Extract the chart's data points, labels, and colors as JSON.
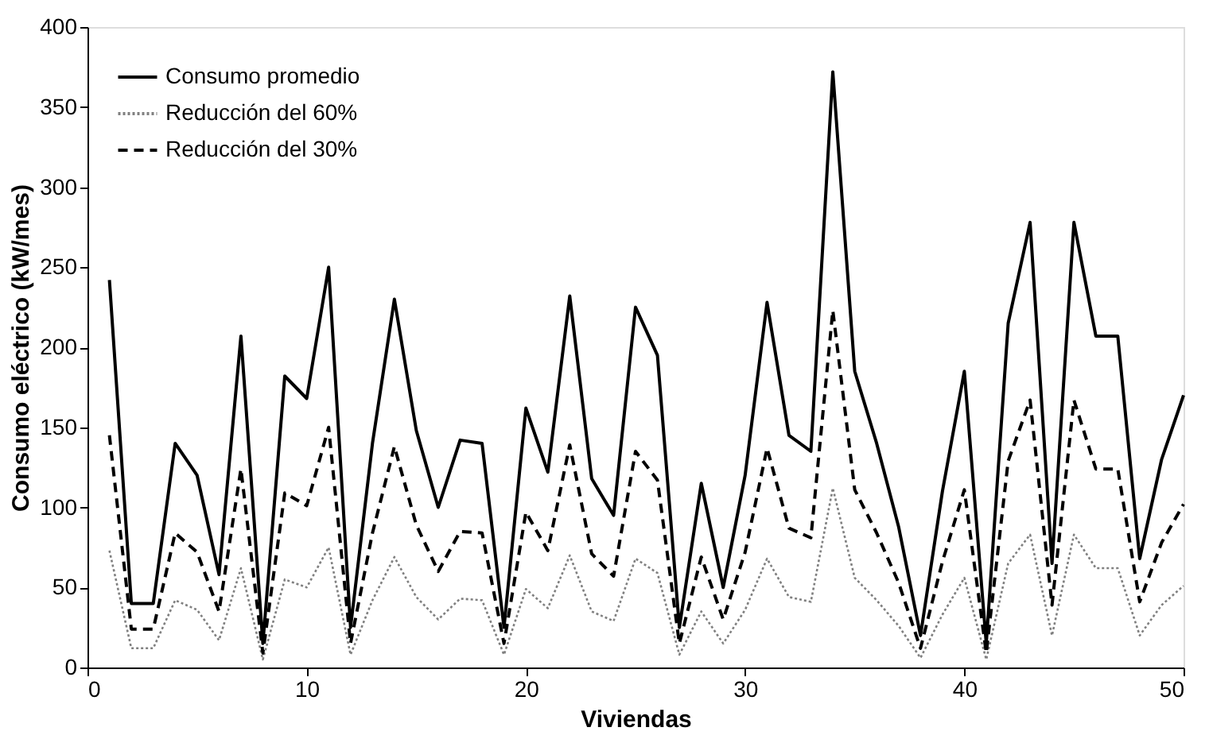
{
  "chart_data": {
    "type": "line",
    "xlabel": "Viviendas",
    "ylabel": "Consumo eléctrico (kW/mes)",
    "x": [
      1,
      2,
      3,
      4,
      5,
      6,
      7,
      8,
      9,
      10,
      11,
      12,
      13,
      14,
      15,
      16,
      17,
      18,
      19,
      20,
      21,
      22,
      23,
      24,
      25,
      26,
      27,
      28,
      29,
      30,
      31,
      32,
      33,
      34,
      35,
      36,
      37,
      38,
      39,
      40,
      41,
      42,
      43,
      44,
      45,
      46,
      47,
      48,
      49,
      50
    ],
    "xlim": [
      0,
      50
    ],
    "xticks": [
      0,
      10,
      20,
      30,
      40,
      50
    ],
    "ylim": [
      0,
      400
    ],
    "yticks": [
      0,
      50,
      100,
      150,
      200,
      250,
      300,
      350,
      400
    ],
    "grid": false,
    "legend": "top left",
    "marker": "none",
    "series": [
      {
        "name": "Consumo promedio",
        "color": "#000000",
        "line_style": "solid",
        "values": [
          242,
          40,
          40,
          140,
          120,
          58,
          207,
          15,
          182,
          168,
          250,
          25,
          140,
          230,
          148,
          100,
          142,
          140,
          25,
          162,
          122,
          232,
          118,
          95,
          225,
          195,
          25,
          115,
          50,
          120,
          228,
          145,
          135,
          372,
          185,
          140,
          88,
          20,
          110,
          185,
          15,
          215,
          278,
          65,
          278,
          207,
          207,
          68,
          130,
          170
        ]
      },
      {
        "name": "Reducción del 60%",
        "color": "#808080",
        "line_style": "dotted",
        "values": [
          73,
          12,
          12,
          42,
          36,
          17,
          62,
          5,
          55,
          50,
          75,
          8,
          42,
          69,
          44,
          30,
          43,
          42,
          8,
          49,
          37,
          70,
          35,
          29,
          68,
          59,
          8,
          35,
          15,
          36,
          68,
          44,
          41,
          112,
          56,
          42,
          26,
          6,
          33,
          56,
          5,
          65,
          83,
          20,
          83,
          62,
          62,
          20,
          39,
          51
        ]
      },
      {
        "name": "Reducción del 30%",
        "color": "#000000",
        "line_style": "dashed",
        "values": [
          145,
          24,
          24,
          84,
          72,
          35,
          124,
          9,
          109,
          101,
          150,
          15,
          84,
          138,
          89,
          60,
          85,
          84,
          15,
          97,
          73,
          139,
          71,
          57,
          135,
          117,
          15,
          69,
          30,
          72,
          137,
          87,
          81,
          223,
          111,
          84,
          53,
          12,
          66,
          111,
          9,
          129,
          167,
          39,
          167,
          124,
          124,
          41,
          78,
          102
        ]
      }
    ]
  }
}
